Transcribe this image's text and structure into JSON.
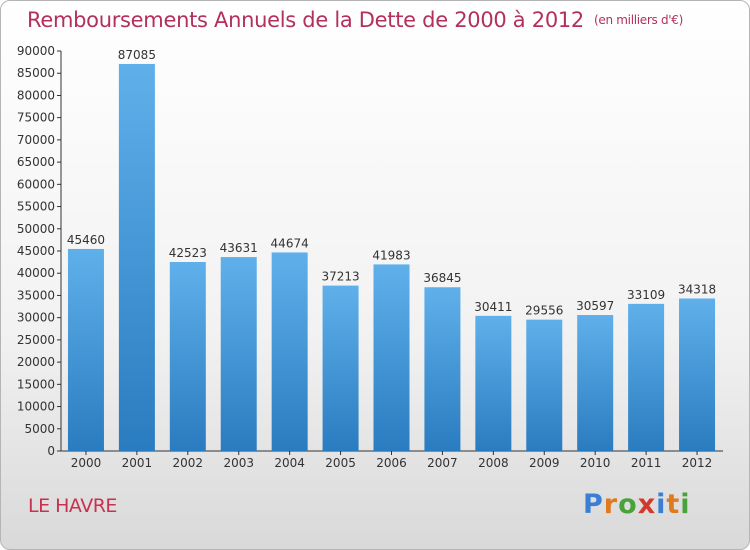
{
  "header": {
    "title": "Remboursements Annuels de la Dette de 2000 à 2012",
    "unit": "(en milliers d'€)"
  },
  "footer": {
    "city": "LE HAVRE",
    "logo_letters": [
      "P",
      "r",
      "o",
      "x",
      "i",
      "t",
      "i"
    ],
    "logo_colors": [
      "#3a7fd4",
      "#e07a1f",
      "#4aa33a",
      "#d13a2a",
      "#3a7fd4",
      "#e07a1f",
      "#4aa33a"
    ]
  },
  "chart_data": {
    "type": "bar",
    "title": "Remboursements Annuels de la Dette de 2000 à 2012",
    "categories": [
      "2000",
      "2001",
      "2002",
      "2003",
      "2004",
      "2005",
      "2006",
      "2007",
      "2008",
      "2009",
      "2010",
      "2011",
      "2012"
    ],
    "values": [
      45460,
      87085,
      42523,
      43631,
      44674,
      37213,
      41983,
      36845,
      30411,
      29556,
      30597,
      33109,
      34318
    ],
    "data_labels": [
      "45460",
      "87085",
      "42523",
      "43631",
      "44674",
      "37213",
      "41983",
      "36845",
      "30411",
      "29556",
      "30597",
      "33109",
      "34318"
    ],
    "yticks": [
      "0",
      "5000",
      "10000",
      "15000",
      "20000",
      "25000",
      "30000",
      "35000",
      "40000",
      "45000",
      "50000",
      "55000",
      "60000",
      "65000",
      "70000",
      "75000",
      "80000",
      "85000",
      "90000"
    ],
    "ylim": [
      0,
      90000
    ],
    "xlabel": "",
    "ylabel": "",
    "grid": false,
    "bar_color_top": "#5fb0ea",
    "bar_color_bottom": "#2a7cc0"
  }
}
